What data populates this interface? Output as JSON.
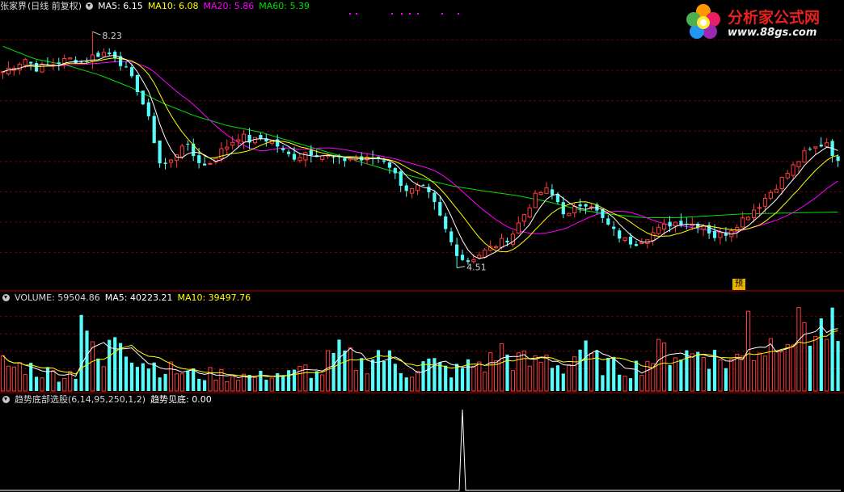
{
  "header": {
    "stock_name": "张家界",
    "period_label": "(日线 前复权)",
    "ma5": "MA5: 6.15",
    "ma10": "MA10: 6.08",
    "ma20": "MA20: 5.86",
    "ma60": "MA60: 5.39"
  },
  "volume_header": {
    "volume": "VOLUME: 59504.86",
    "ma5": "MA5: 40223.21",
    "ma10": "MA10: 39497.76"
  },
  "indicator_header": {
    "name": "趋势底部选股(6,14,95,250,1,2)",
    "value": "趋势见底: 0.00"
  },
  "logo": {
    "title": "分析家公式网",
    "url": "www.88gs.com",
    "icon": "flower-logo-icon"
  },
  "badge": {
    "label": "预"
  },
  "colors": {
    "up": "#ff3c3c",
    "down": "#54fcfc",
    "ma5": "#ffffff",
    "ma10": "#ffff00",
    "ma20": "#ff00ff",
    "ma60": "#00e000",
    "grid": "#8b0000"
  },
  "chart_data": [
    {
      "type": "candlestick",
      "annotations": [
        {
          "label": "8.23",
          "value": 8.23,
          "type": "period-high"
        },
        {
          "label": "4.51",
          "value": 4.51,
          "type": "period-low"
        }
      ],
      "ylim": [
        4.2,
        8.5
      ],
      "grid": true,
      "series": [
        {
          "name": "MA5",
          "value": 6.15
        },
        {
          "name": "MA10",
          "value": 6.08
        },
        {
          "name": "MA20",
          "value": 5.86
        },
        {
          "name": "MA60",
          "value": 5.39
        }
      ],
      "close_trend": [
        7.6,
        7.7,
        7.8,
        7.65,
        7.7,
        7.75,
        7.8,
        7.75,
        7.85,
        7.9,
        7.85,
        7.6,
        7.3,
        6.8,
        6.1,
        6.2,
        6.5,
        6.25,
        6.1,
        6.3,
        6.45,
        6.6,
        6.5,
        6.55,
        6.5,
        6.3,
        6.25,
        6.35,
        6.3,
        6.25,
        6.2,
        6.25,
        6.2,
        6.25,
        6.2,
        5.9,
        5.7,
        5.8,
        5.6,
        5.2,
        4.8,
        4.6,
        4.7,
        4.8,
        4.9,
        5.0,
        5.3,
        5.6,
        5.75,
        5.6,
        5.3,
        5.5,
        5.55,
        5.3,
        5.1,
        4.95,
        4.9,
        5.0,
        5.1,
        5.2,
        5.25,
        5.2,
        5.2,
        5.0,
        5.05,
        5.2,
        5.35,
        5.5,
        5.7,
        5.9,
        6.1,
        6.3,
        6.4,
        6.5,
        6.15
      ],
      "ma60_trend": [
        8.0,
        7.8,
        7.7,
        7.55,
        7.35,
        7.1,
        6.9,
        6.75,
        6.65,
        6.5,
        6.35,
        6.2,
        6.05,
        5.92,
        5.8,
        5.72,
        5.65,
        5.55,
        5.42,
        5.35,
        5.3,
        5.3,
        5.33,
        5.36,
        5.37,
        5.38,
        5.39
      ]
    },
    {
      "type": "bar",
      "grid": true,
      "series": [
        {
          "name": "VOLUME",
          "value": 59504.86
        },
        {
          "name": "MA5",
          "value": 40223.21
        },
        {
          "name": "MA10",
          "value": 39497.76
        }
      ],
      "volume_trend": [
        3,
        2.5,
        2.8,
        2.2,
        2,
        1.8,
        1.9,
        2.1,
        4,
        2.5,
        7,
        5.5,
        3.5,
        3,
        2.6,
        2.2,
        2,
        1.8,
        1.7,
        1.9,
        1.6,
        1.8,
        1.5,
        1.6,
        2.0,
        1.7,
        1.9,
        2.5,
        1.6,
        3.5,
        4.0,
        3.2,
        2.8,
        4.3,
        3.6,
        2.5,
        2.0,
        2.8,
        3.0,
        2.4,
        2.1,
        2.6,
        3.0,
        2.8,
        4.5,
        3.5,
        3.2,
        2.8,
        3.6,
        3.0,
        2.5,
        4.8,
        3.4,
        3.0,
        2.6,
        2.4,
        2.5,
        3.2,
        3.9,
        4.4,
        4.2,
        3.8,
        4.6,
        3.6,
        3.2,
        3.4,
        3.8,
        4.6,
        5.0,
        7.4,
        6.2,
        7.8,
        6.0,
        7.0,
        5.5
      ]
    },
    {
      "type": "line",
      "grid": false,
      "series": [
        {
          "name": "趋势见底",
          "value": 0.0
        }
      ],
      "signal_trend": [
        0,
        0,
        0,
        0,
        0,
        0,
        0,
        0,
        0,
        0,
        0,
        0,
        0,
        0,
        0,
        0,
        0,
        0,
        0,
        0,
        0,
        0,
        0,
        0,
        0,
        0,
        0,
        0,
        0,
        0,
        0,
        0,
        0,
        0,
        0,
        0,
        0,
        0,
        0,
        0,
        1,
        0,
        0,
        0,
        0,
        0,
        0,
        0,
        0,
        0,
        0,
        0,
        0,
        0,
        0,
        0,
        0,
        0,
        0,
        0,
        0,
        0,
        0,
        0,
        0,
        0,
        0,
        0,
        0,
        0,
        0,
        0,
        0,
        0,
        0
      ]
    }
  ]
}
